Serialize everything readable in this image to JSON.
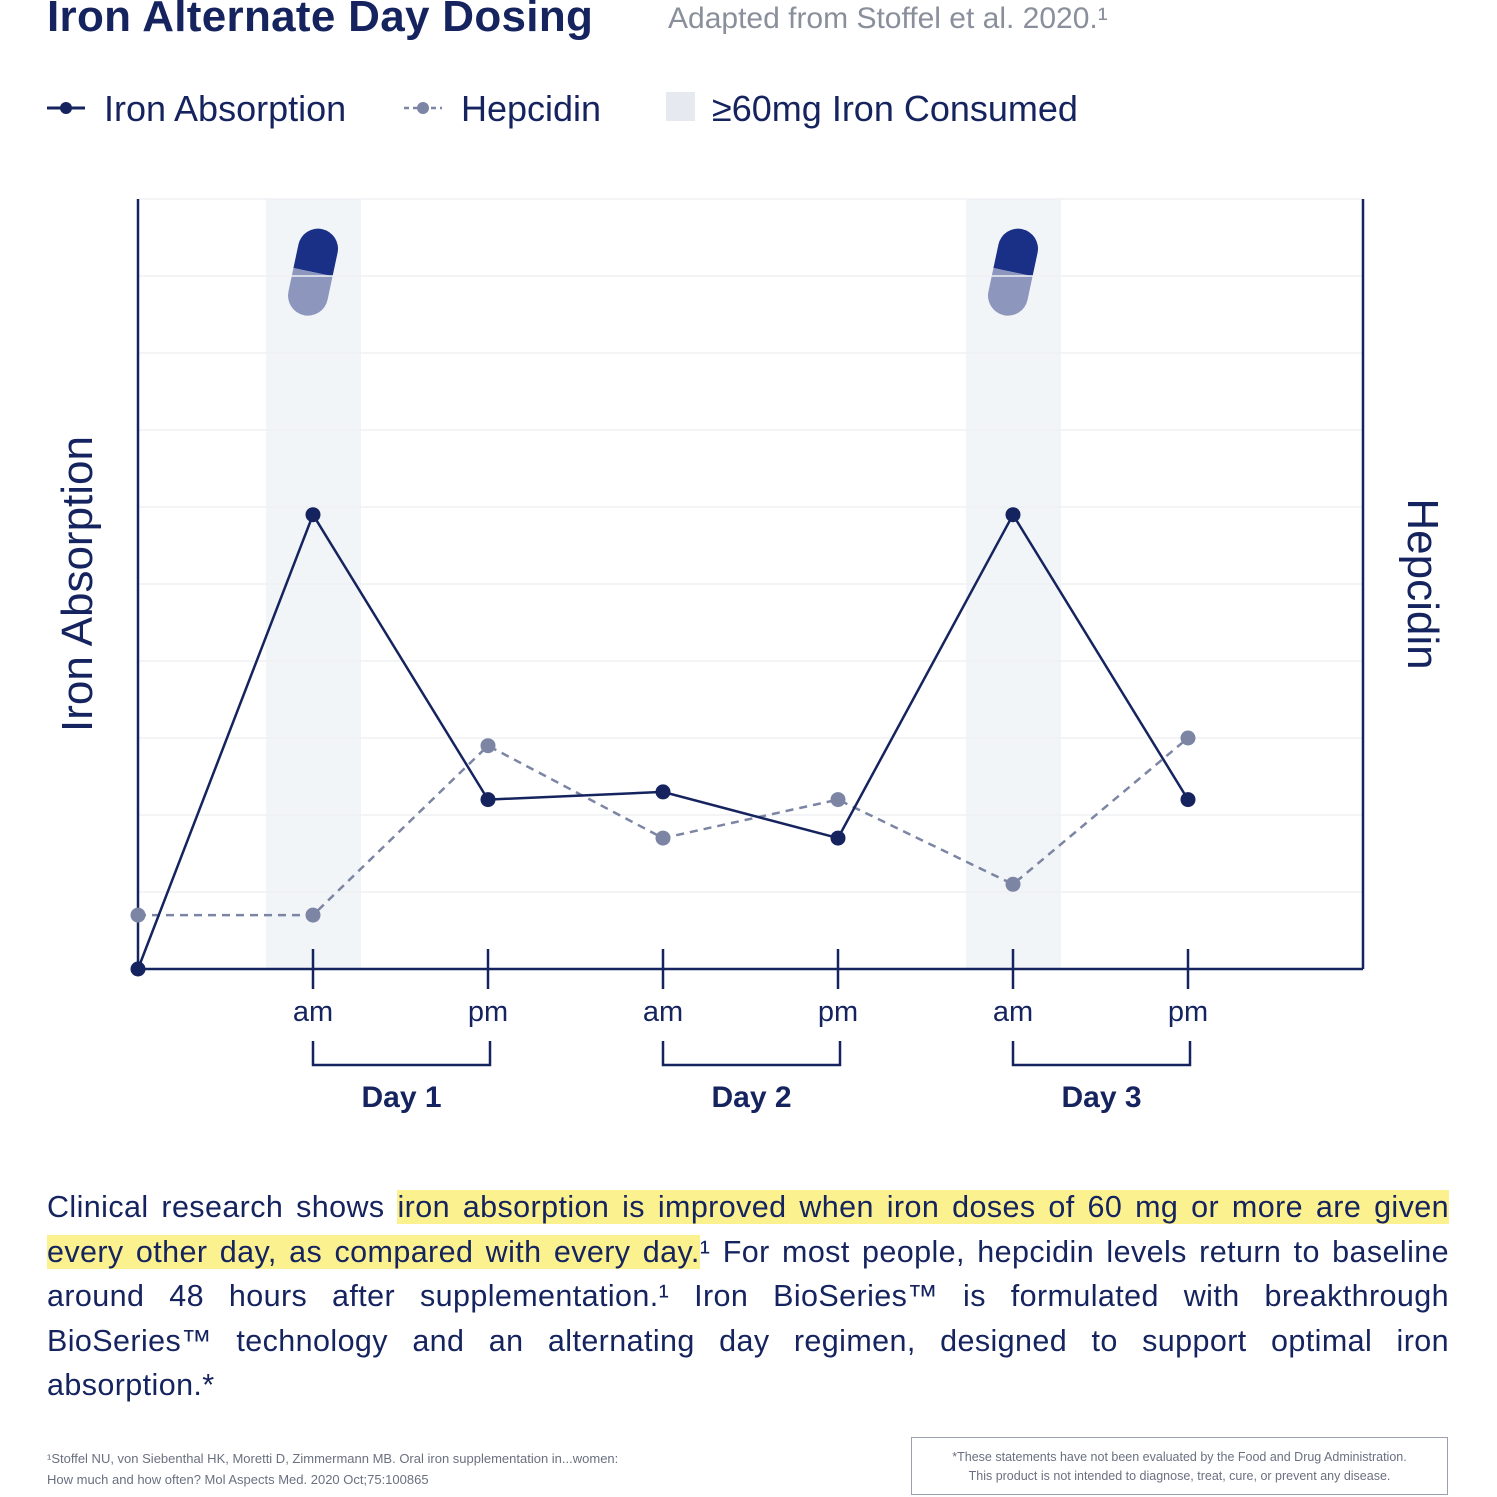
{
  "title": "Iron Alternate Day Dosing",
  "subtitle": "Adapted from Stoffel et al. 2020.¹",
  "legend": {
    "absorption": "Iron Absorption",
    "hepcidin": "Hepcidin",
    "consumed": "≥60mg Iron Consumed"
  },
  "colors": {
    "absorption": "#15235e",
    "hepcidin": "#7c86a4",
    "shading": "#f2f5f7",
    "highlight": "#fbf18e"
  },
  "chart_data": {
    "type": "line",
    "x": [
      0,
      1,
      2,
      3,
      4,
      5,
      6
    ],
    "tick_labels": [
      "",
      "am",
      "pm",
      "am",
      "pm",
      "am",
      "pm"
    ],
    "groups": [
      {
        "label": "Day 1",
        "from": 1,
        "to": 2
      },
      {
        "label": "Day 2",
        "from": 3,
        "to": 4
      },
      {
        "label": "Day 3",
        "from": 5,
        "to": 6
      }
    ],
    "ylabel_left": "Iron Absorption",
    "ylabel_right": "Hepcidin",
    "xlim": [
      0,
      7
    ],
    "ylim": [
      0,
      10
    ],
    "grid": true,
    "legend_position": "top-left",
    "series": [
      {
        "name": "Iron Absorption",
        "style": "solid",
        "values": [
          0,
          5.9,
          2.2,
          2.3,
          1.7,
          5.9,
          2.2
        ]
      },
      {
        "name": "Hepcidin",
        "style": "dashed",
        "values": [
          0.7,
          0.7,
          2.9,
          1.7,
          2.2,
          1.1,
          3.0
        ]
      }
    ],
    "shaded_x": [
      1,
      5
    ],
    "shaded_label": "≥60mg Iron Consumed",
    "markers_icon": "capsule-icon"
  },
  "paragraph": {
    "pre": "Clinical research shows ",
    "highlight": "iron absorption is improved when iron doses of 60 mg or more are given every other day, as compared with every day.",
    "post": "¹ For most people, hepcidin levels return to baseline around 48 hours after supplementation.¹ Iron BioSeries™ is formulated with breakthrough BioSeries™ technology and an alternating day regimen, designed to support optimal iron absorption.*"
  },
  "references": {
    "line1": "¹Stoffel NU, von Siebenthal HK, Moretti D, Zimmermann MB. Oral iron supplementation in...women:",
    "line2": "How much and how often? Mol Aspects Med. 2020 Oct;75:100865"
  },
  "disclaimer": {
    "line1": "*These statements have not been evaluated by the Food and Drug Administration.",
    "line2": "This product is not intended to diagnose, treat, cure, or prevent any disease."
  }
}
